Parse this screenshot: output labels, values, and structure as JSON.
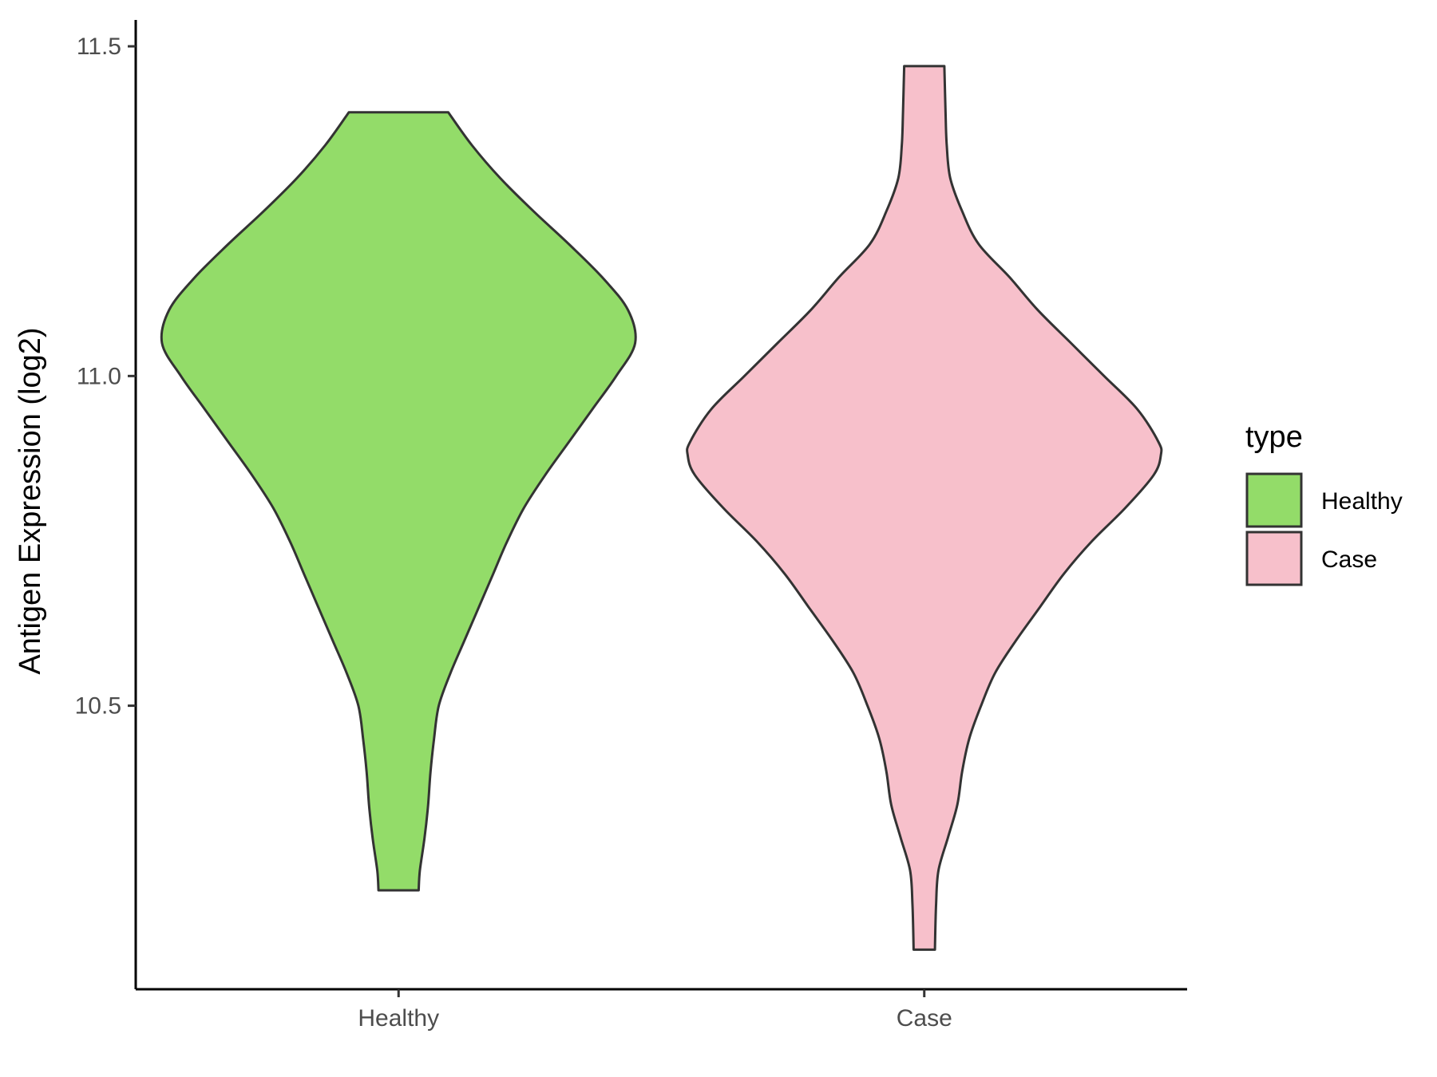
{
  "chart_data": {
    "type": "violin",
    "ylabel": "Antigen Expression (log2)",
    "xlabel": "",
    "categories": [
      "Healthy",
      "Case"
    ],
    "ylim": [
      10.07,
      11.54
    ],
    "yticks": [
      10.5,
      11.0,
      11.5
    ],
    "ytick_labels": [
      "10.5",
      "11.0",
      "11.5"
    ],
    "grid": false,
    "legend": {
      "title": "type",
      "position": "right",
      "entries": [
        {
          "label": "Healthy",
          "color": "#93dc69"
        },
        {
          "label": "Case",
          "color": "#f7c0cb"
        }
      ]
    },
    "series": [
      {
        "name": "Healthy",
        "color": "#93dc69",
        "range": [
          10.22,
          11.4
        ],
        "density_profile": [
          [
            10.22,
            0.085
          ],
          [
            10.25,
            0.09
          ],
          [
            10.3,
            0.11
          ],
          [
            10.35,
            0.125
          ],
          [
            10.4,
            0.135
          ],
          [
            10.45,
            0.15
          ],
          [
            10.5,
            0.17
          ],
          [
            10.55,
            0.22
          ],
          [
            10.6,
            0.28
          ],
          [
            10.65,
            0.34
          ],
          [
            10.7,
            0.4
          ],
          [
            10.75,
            0.46
          ],
          [
            10.8,
            0.53
          ],
          [
            10.85,
            0.62
          ],
          [
            10.9,
            0.72
          ],
          [
            10.95,
            0.82
          ],
          [
            11.0,
            0.92
          ],
          [
            11.05,
            1.0
          ],
          [
            11.1,
            0.97
          ],
          [
            11.15,
            0.86
          ],
          [
            11.2,
            0.72
          ],
          [
            11.25,
            0.57
          ],
          [
            11.3,
            0.43
          ],
          [
            11.35,
            0.31
          ],
          [
            11.4,
            0.21
          ]
        ]
      },
      {
        "name": "Case",
        "color": "#f7c0cb",
        "range": [
          10.13,
          11.47
        ],
        "density_profile": [
          [
            10.13,
            0.045
          ],
          [
            10.2,
            0.05
          ],
          [
            10.25,
            0.06
          ],
          [
            10.3,
            0.1
          ],
          [
            10.35,
            0.14
          ],
          [
            10.4,
            0.16
          ],
          [
            10.45,
            0.19
          ],
          [
            10.5,
            0.24
          ],
          [
            10.55,
            0.3
          ],
          [
            10.6,
            0.39
          ],
          [
            10.65,
            0.49
          ],
          [
            10.7,
            0.59
          ],
          [
            10.75,
            0.71
          ],
          [
            10.8,
            0.85
          ],
          [
            10.85,
            0.97
          ],
          [
            10.88,
            1.0
          ],
          [
            10.9,
            0.99
          ],
          [
            10.95,
            0.9
          ],
          [
            11.0,
            0.76
          ],
          [
            11.05,
            0.62
          ],
          [
            11.1,
            0.48
          ],
          [
            11.15,
            0.36
          ],
          [
            11.2,
            0.23
          ],
          [
            11.25,
            0.16
          ],
          [
            11.3,
            0.11
          ],
          [
            11.35,
            0.095
          ],
          [
            11.4,
            0.09
          ],
          [
            11.47,
            0.085
          ]
        ]
      }
    ]
  }
}
